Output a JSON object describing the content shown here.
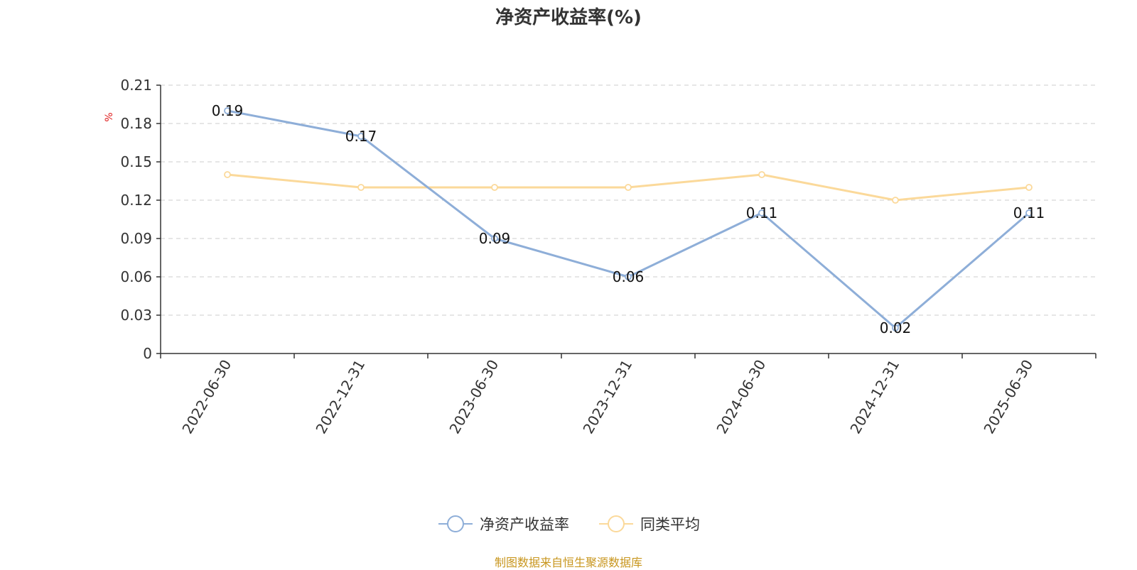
{
  "chart_data": {
    "type": "line",
    "title": "净资产收益率(%)",
    "ylabel": "%",
    "categories": [
      "2022-06-30",
      "2022-12-31",
      "2023-06-30",
      "2023-12-31",
      "2024-06-30",
      "2024-12-31",
      "2025-06-30"
    ],
    "ylim": [
      0,
      0.21
    ],
    "yticks": [
      "0",
      "0.03",
      "0.06",
      "0.09",
      "0.12",
      "0.15",
      "0.18",
      "0.21"
    ],
    "grid": true,
    "legend_position": "bottom-center",
    "series": [
      {
        "name": "净资产收益率",
        "color": "#8eaed8",
        "values": [
          0.19,
          0.17,
          0.09,
          0.06,
          0.11,
          0.02,
          0.11
        ],
        "labels": [
          "0.19",
          "0.17",
          "0.09",
          "0.06",
          "0.11",
          "0.02",
          "0.11"
        ]
      },
      {
        "name": "同类平均",
        "color": "#fbd99a",
        "values": [
          0.14,
          0.13,
          0.13,
          0.13,
          0.14,
          0.12,
          0.13
        ]
      }
    ]
  },
  "source_note": "制图数据来自恒生聚源数据库"
}
